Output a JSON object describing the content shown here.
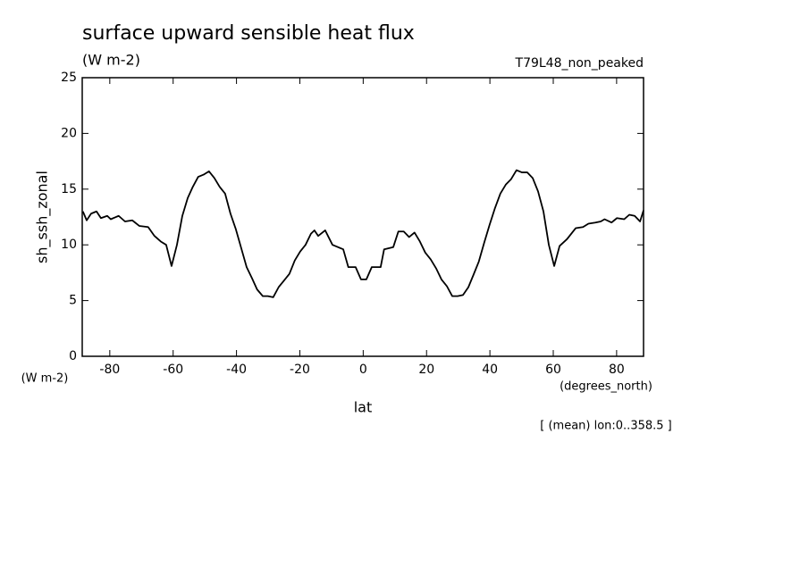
{
  "chart_data": {
    "type": "line",
    "title": "surface upward sensible heat flux",
    "subtitle": "(W m-2)",
    "annotation": "T79L48_non_peaked",
    "ylabel": "sh_ssh_zonal",
    "yunits": "(W m-2)",
    "xunits": "(degrees_north)",
    "xlabel": "lat",
    "footnote": "[ (mean) lon:0..358.5 ]",
    "xlim": [
      -88.7,
      88.5
    ],
    "ylim": [
      0,
      25
    ],
    "xticks": [
      -80,
      -60,
      -40,
      -20,
      0,
      20,
      40,
      60,
      80
    ],
    "yticks": [
      0,
      5,
      10,
      15,
      20,
      25
    ],
    "series": [
      {
        "name": "sh_ssh_zonal",
        "color": "#000000",
        "x": [
          -88.5,
          -87.3,
          -85.9,
          -84.2,
          -82.8,
          -80.8,
          -79.7,
          -77.2,
          -75.2,
          -72.9,
          -70.7,
          -67.9,
          -65.9,
          -63.9,
          -62.2,
          -60.5,
          -58.8,
          -57.1,
          -55.4,
          -53.8,
          -52.1,
          -50.4,
          -48.7,
          -47.0,
          -45.3,
          -43.6,
          -41.9,
          -40.2,
          -38.5,
          -36.8,
          -35.1,
          -33.5,
          -31.7,
          -30.1,
          -28.4,
          -26.7,
          -25.0,
          -23.3,
          -21.6,
          -19.9,
          -18.2,
          -16.5,
          -15.4,
          -14.2,
          -12.0,
          -9.7,
          -8.0,
          -6.3,
          -4.7,
          -2.4,
          -0.7,
          1.0,
          2.7,
          5.5,
          6.6,
          9.5,
          11.1,
          12.8,
          14.5,
          16.2,
          17.9,
          19.6,
          21.3,
          23.0,
          24.7,
          26.4,
          28.1,
          29.8,
          31.5,
          33.2,
          34.8,
          36.5,
          38.2,
          39.9,
          41.6,
          43.3,
          45.0,
          46.7,
          48.4,
          50.1,
          51.8,
          53.5,
          55.2,
          56.9,
          58.6,
          60.3,
          62.0,
          64.3,
          67.1,
          69.4,
          71.1,
          73.3,
          75.0,
          76.2,
          78.4,
          80.1,
          82.4,
          84.0,
          85.7,
          87.4,
          88.5
        ],
        "values": [
          13.0,
          12.2,
          12.8,
          13.0,
          12.4,
          12.6,
          12.3,
          12.6,
          12.1,
          12.2,
          11.7,
          11.6,
          10.8,
          10.3,
          10.0,
          8.1,
          10.0,
          12.6,
          14.2,
          15.2,
          16.1,
          16.3,
          16.6,
          16.0,
          15.2,
          14.6,
          12.8,
          11.4,
          9.7,
          8.0,
          7.0,
          6.0,
          5.4,
          5.4,
          5.3,
          6.2,
          6.8,
          7.4,
          8.6,
          9.4,
          10.0,
          11.0,
          11.3,
          10.8,
          11.3,
          10.0,
          9.8,
          9.6,
          8.0,
          8.0,
          6.9,
          6.9,
          8.0,
          8.0,
          9.6,
          9.8,
          11.2,
          11.2,
          10.7,
          11.1,
          10.3,
          9.3,
          8.7,
          7.9,
          6.9,
          6.3,
          5.4,
          5.4,
          5.5,
          6.2,
          7.3,
          8.5,
          10.2,
          11.8,
          13.3,
          14.6,
          15.4,
          15.9,
          16.7,
          16.5,
          16.5,
          16.0,
          14.8,
          13.0,
          10.0,
          8.1,
          9.9,
          10.5,
          11.5,
          11.6,
          11.9,
          12.0,
          12.1,
          12.3,
          12.0,
          12.4,
          12.3,
          12.7,
          12.6,
          12.1,
          13.1
        ]
      }
    ]
  }
}
